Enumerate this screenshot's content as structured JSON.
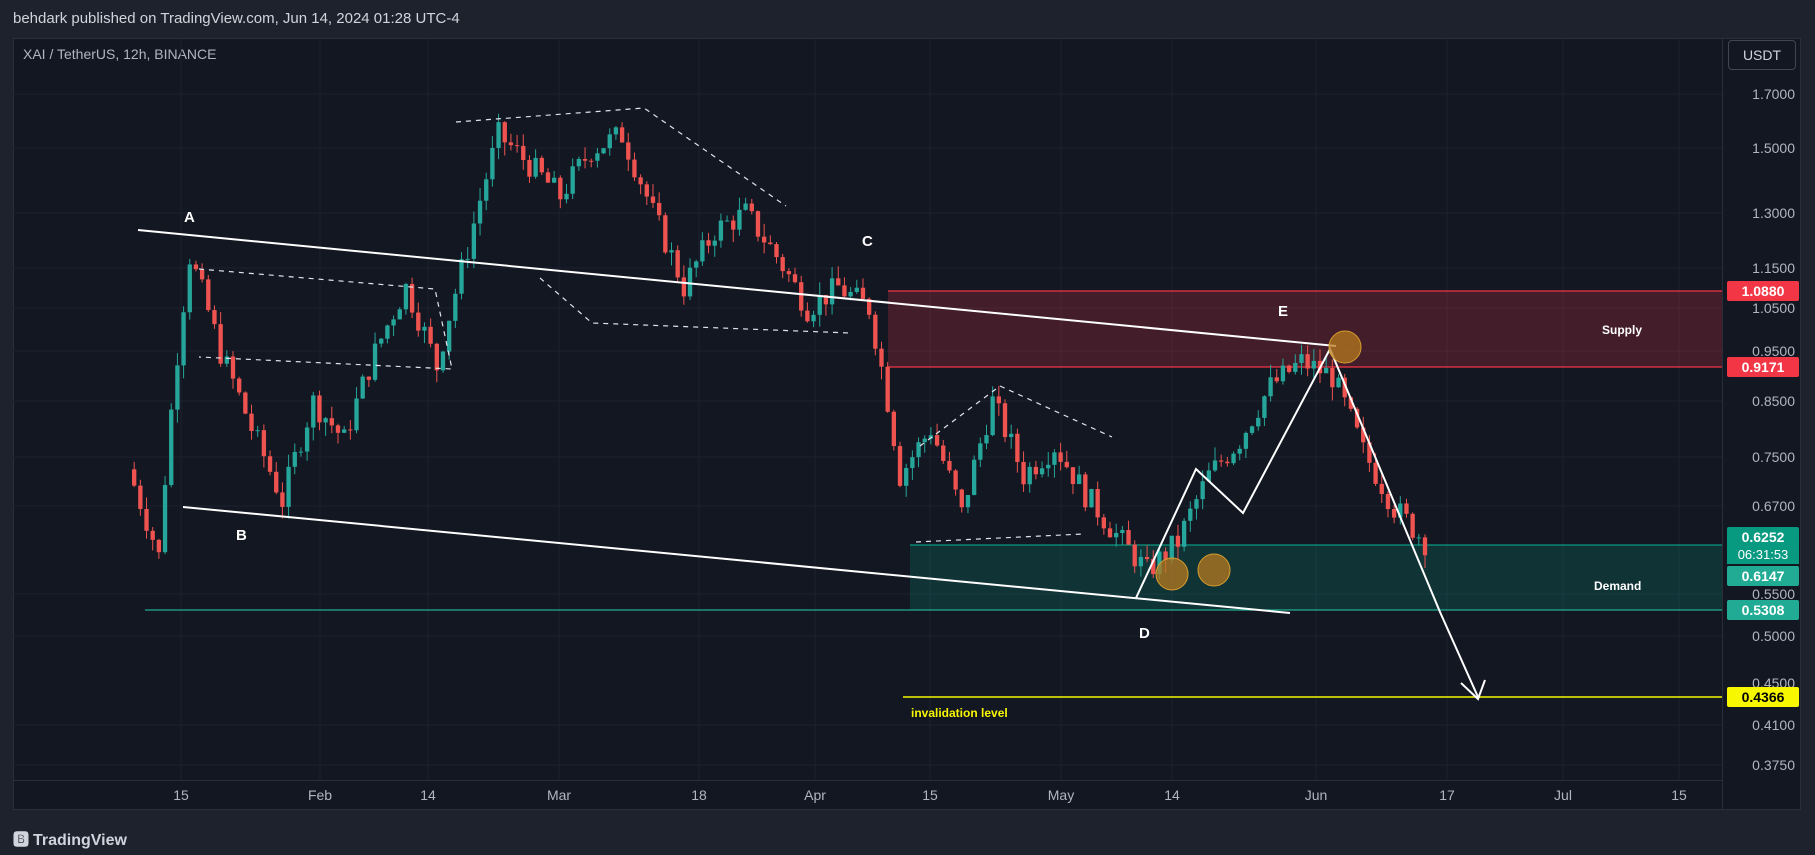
{
  "header": {
    "published": "behdark published on TradingView.com, Jun 14, 2024 01:28 UTC-4"
  },
  "chart_header": {
    "symbol": "XAI / TetherUS, 12h, BINANCE"
  },
  "price_axis": {
    "currency": "USDT",
    "ticks": [
      "1.7000",
      "1.5000",
      "1.3000",
      "1.1500",
      "1.0500",
      "0.9500",
      "0.8500",
      "0.7500",
      "0.6700",
      "0.5500",
      "0.5000",
      "0.4500",
      "0.4100",
      "0.3750"
    ]
  },
  "time_axis": {
    "ticks": [
      "15",
      "Feb",
      "14",
      "Mar",
      "18",
      "Apr",
      "15",
      "May",
      "14",
      "Jun",
      "17",
      "Jul",
      "15"
    ]
  },
  "price_labels": {
    "supply_top": "1.0880",
    "supply_bottom": "0.9171",
    "last_price": "0.6252",
    "countdown": "06:31:53",
    "demand_top": "0.6147",
    "demand_bottom": "0.5308",
    "invalidation": "0.4366"
  },
  "annotations": {
    "point_a": "A",
    "point_b": "B",
    "point_c": "C",
    "point_d": "D",
    "point_e": "E",
    "supply": "Supply",
    "demand": "Demand",
    "invalidation": "invalidation level"
  },
  "colors": {
    "up": "#26a69a",
    "down": "#ef5350",
    "supply_zone": "#f23645",
    "demand_zone": "#089981",
    "invalidation_line": "#f7f700",
    "background": "#131722"
  },
  "footer": {
    "brand": "TradingView"
  },
  "chart_data": {
    "type": "candlestick",
    "symbol": "XAI / TetherUS",
    "interval": "12h",
    "exchange": "BINANCE",
    "y_axis_labels": [
      1.7,
      1.5,
      1.3,
      1.15,
      1.05,
      0.95,
      0.85,
      0.75,
      0.67,
      0.55,
      0.5,
      0.45,
      0.41,
      0.375
    ],
    "x_axis_labels": [
      "15",
      "Feb",
      "14",
      "Mar",
      "18",
      "Apr",
      "15",
      "May",
      "14",
      "Jun",
      "17",
      "Jul",
      "15"
    ],
    "zones": [
      {
        "name": "Supply",
        "top": 1.088,
        "bottom": 0.9171
      },
      {
        "name": "Demand",
        "top": 0.6147,
        "bottom": 0.5308
      }
    ],
    "levels": [
      {
        "name": "invalidation level",
        "value": 0.4366
      }
    ],
    "last_price": 0.6252,
    "approx_price_path": [
      0.73,
      0.6,
      1.18,
      0.95,
      0.8,
      0.68,
      0.85,
      0.78,
      0.95,
      1.1,
      0.92,
      1.2,
      1.55,
      1.45,
      1.35,
      1.5,
      1.55,
      1.3,
      1.1,
      1.25,
      1.3,
      1.18,
      1.05,
      1.1,
      1.05,
      0.72,
      0.8,
      0.66,
      0.85,
      0.72,
      0.77,
      0.69,
      0.63,
      0.58,
      0.62,
      0.72,
      0.78,
      0.88,
      0.93,
      0.9,
      0.76,
      0.67,
      0.62
    ]
  }
}
